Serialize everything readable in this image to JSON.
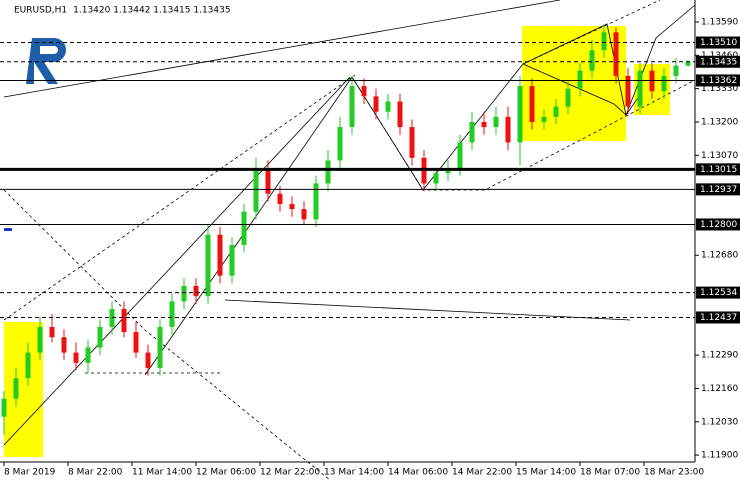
{
  "chart_data": {
    "type": "candlestick",
    "title": "EURUSD,H1",
    "subtitle": "1.13420 1.13442 1.13415 1.13435",
    "up_color": "#22cc22",
    "down_color": "#ee1111",
    "xlim": [
      -1,
      172.75
    ],
    "ylim": [
      1.11873,
      1.13676
    ],
    "xticks": [
      {
        "value": 0,
        "label": "8 Mar 2019"
      },
      {
        "value": 16,
        "label": "8 Mar 22:00"
      },
      {
        "value": 32,
        "label": "11 Mar 14:00"
      },
      {
        "value": 48,
        "label": "12 Mar 06:00"
      },
      {
        "value": 64,
        "label": "12 Mar 22:00"
      },
      {
        "value": 80,
        "label": "13 Mar 14:00"
      },
      {
        "value": 96,
        "label": "14 Mar 06:00"
      },
      {
        "value": 112,
        "label": "14 Mar 22:00"
      },
      {
        "value": 128,
        "label": "15 Mar 14:00"
      },
      {
        "value": 144,
        "label": "18 Mar 07:00"
      },
      {
        "value": 160,
        "label": "18 Mar 23:00"
      }
    ],
    "yticks": [
      {
        "value": 1.1359,
        "label": "1.13590"
      },
      {
        "value": 1.1346,
        "label": "1.13460"
      },
      {
        "value": 1.1333,
        "label": "1.13330"
      },
      {
        "value": 1.132,
        "label": "1.13200"
      },
      {
        "value": 1.1307,
        "label": "1.13070"
      },
      {
        "value": 1.1268,
        "label": "1.12680"
      },
      {
        "value": 1.1229,
        "label": "1.12290"
      },
      {
        "value": 1.1216,
        "label": "1.12160"
      },
      {
        "value": 1.1203,
        "label": "1.12030"
      },
      {
        "value": 1.119,
        "label": "1.11900"
      }
    ],
    "levels": [
      {
        "value": 1.1351,
        "label": "1.13510",
        "style": "dashed"
      },
      {
        "value": 1.13435,
        "label": "1.13435",
        "style": "dashed"
      },
      {
        "value": 1.13362,
        "label": "1.13362",
        "style": "solid"
      },
      {
        "value": 1.13015,
        "label": "1.13015",
        "style": "thick"
      },
      {
        "value": 1.12937,
        "label": "1.12937",
        "style": "solid"
      },
      {
        "value": 1.128,
        "label": "1.12800",
        "style": "solid"
      },
      {
        "value": 1.12534,
        "label": "1.12534",
        "style": "dashed"
      },
      {
        "value": 1.12437,
        "label": "1.12437",
        "style": "dashed"
      }
    ],
    "x": [
      0,
      3,
      6,
      9,
      12,
      15,
      18,
      21,
      24,
      27,
      30,
      33,
      36,
      39,
      42,
      45,
      48,
      51,
      54,
      57,
      60,
      63,
      66,
      69,
      72,
      75,
      78,
      81,
      84,
      87,
      90,
      93,
      96,
      99,
      102,
      105,
      108,
      111,
      114,
      117,
      120,
      123,
      126,
      129,
      132,
      135,
      138,
      141,
      144,
      147,
      150,
      153,
      156,
      159,
      162,
      165,
      168,
      171
    ],
    "open": [
      1.1205,
      1.1212,
      1.122,
      1.123,
      1.124,
      1.1236,
      1.123,
      1.1226,
      1.1232,
      1.124,
      1.1247,
      1.1238,
      1.123,
      1.1224,
      1.124,
      1.125,
      1.1256,
      1.1252,
      1.1276,
      1.126,
      1.1272,
      1.1285,
      1.1302,
      1.1292,
      1.1288,
      1.1286,
      1.1282,
      1.1296,
      1.1305,
      1.1318,
      1.1334,
      1.133,
      1.1324,
      1.1328,
      1.1318,
      1.1306,
      1.1296,
      1.13,
      1.1302,
      1.1312,
      1.132,
      1.1318,
      1.1322,
      1.1312,
      1.1334,
      1.132,
      1.1322,
      1.1326,
      1.1333,
      1.134,
      1.1348,
      1.1355,
      1.1338,
      1.1326,
      1.134,
      1.1332,
      1.1338,
      1.1342
    ],
    "high": [
      1.1215,
      1.1224,
      1.1234,
      1.1244,
      1.1245,
      1.1239,
      1.1234,
      1.1235,
      1.1243,
      1.125,
      1.125,
      1.1242,
      1.1233,
      1.1243,
      1.1253,
      1.1259,
      1.1259,
      1.128,
      1.1279,
      1.1275,
      1.1288,
      1.1306,
      1.1305,
      1.1295,
      1.1291,
      1.1289,
      1.1299,
      1.1309,
      1.1322,
      1.1338,
      1.1337,
      1.1333,
      1.1331,
      1.1331,
      1.1321,
      1.1309,
      1.1302,
      1.1305,
      1.1315,
      1.1324,
      1.1324,
      1.1326,
      1.1326,
      1.1338,
      1.1337,
      1.1325,
      1.1329,
      1.1336,
      1.1343,
      1.1352,
      1.1358,
      1.1357,
      1.1341,
      1.1343,
      1.1343,
      1.1341,
      1.1345,
      1.13442
    ],
    "low": [
      1.1198,
      1.1209,
      1.1217,
      1.1227,
      1.1234,
      1.1227,
      1.1223,
      1.1222,
      1.1229,
      1.1237,
      1.1236,
      1.1228,
      1.1221,
      1.1221,
      1.1237,
      1.1247,
      1.1249,
      1.1249,
      1.1257,
      1.1257,
      1.1269,
      1.1282,
      1.1289,
      1.1285,
      1.1283,
      1.128,
      1.1279,
      1.1293,
      1.1302,
      1.1315,
      1.1327,
      1.1321,
      1.1321,
      1.1315,
      1.1303,
      1.1293,
      1.1293,
      1.1297,
      1.1299,
      1.1309,
      1.1315,
      1.1315,
      1.1309,
      1.1303,
      1.1317,
      1.1317,
      1.1319,
      1.1323,
      1.133,
      1.1337,
      1.1345,
      1.1335,
      1.1323,
      1.1323,
      1.1329,
      1.1329,
      1.1335,
      1.13415
    ],
    "close": [
      1.1212,
      1.122,
      1.123,
      1.124,
      1.1236,
      1.123,
      1.1226,
      1.1232,
      1.124,
      1.1247,
      1.1238,
      1.123,
      1.1224,
      1.124,
      1.125,
      1.1256,
      1.1252,
      1.1276,
      1.126,
      1.1272,
      1.1285,
      1.1302,
      1.1292,
      1.1288,
      1.1286,
      1.1282,
      1.1296,
      1.1305,
      1.1318,
      1.1334,
      1.133,
      1.1324,
      1.1328,
      1.1318,
      1.1306,
      1.1296,
      1.13,
      1.1302,
      1.1312,
      1.132,
      1.1318,
      1.1322,
      1.1312,
      1.1334,
      1.132,
      1.1322,
      1.1326,
      1.1333,
      1.134,
      1.1348,
      1.1355,
      1.1338,
      1.1326,
      1.134,
      1.1332,
      1.1338,
      1.1342,
      1.13435
    ]
  }
}
